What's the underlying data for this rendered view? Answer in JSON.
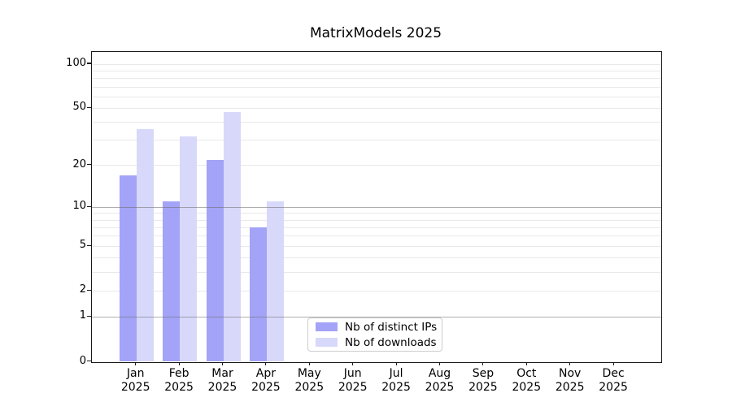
{
  "title": "MatrixModels 2025",
  "chart_data": {
    "type": "bar",
    "title": "MatrixModels 2025",
    "categories": [
      "Jan",
      "Feb",
      "Mar",
      "Apr",
      "May",
      "Jun",
      "Jul",
      "Aug",
      "Sep",
      "Oct",
      "Nov",
      "Dec"
    ],
    "year_label": "2025",
    "x_tick_labels": [
      "Jan\n2025",
      "Feb\n2025",
      "Mar\n2025",
      "Apr\n2025",
      "May\n2025",
      "Jun\n2025",
      "Jul\n2025",
      "Aug\n2025",
      "Sep\n2025",
      "Oct\n2025",
      "Nov\n2025",
      "Dec\n2025"
    ],
    "series": [
      {
        "name": "Nb of distinct IPs",
        "color": "#a3a3f7",
        "values": [
          17,
          11,
          22,
          7,
          null,
          null,
          null,
          null,
          null,
          null,
          null,
          null
        ]
      },
      {
        "name": "Nb of downloads",
        "color": "#d8d8fb",
        "values": [
          36,
          32,
          47,
          11,
          null,
          null,
          null,
          null,
          null,
          null,
          null,
          null
        ]
      }
    ],
    "y_scale": "log1p",
    "ylim": [
      0,
      122
    ],
    "y_ticks": [
      0,
      1,
      2,
      5,
      10,
      20,
      50,
      100
    ],
    "grid": {
      "minor_values": [
        2,
        3,
        4,
        5,
        6,
        7,
        8,
        9,
        20,
        30,
        40,
        50,
        60,
        70,
        80,
        90,
        100
      ],
      "major_values": [
        1,
        10
      ],
      "minor_color": "#e9e9e9",
      "major_color": "rgba(110,110,110,0.55)"
    },
    "legend": {
      "position": "inside-bottom-center",
      "items": [
        "Nb of distinct IPs",
        "Nb of downloads"
      ]
    }
  },
  "colors": {
    "spine": "#1a1a1a",
    "text": "#000000",
    "background": "#ffffff"
  }
}
